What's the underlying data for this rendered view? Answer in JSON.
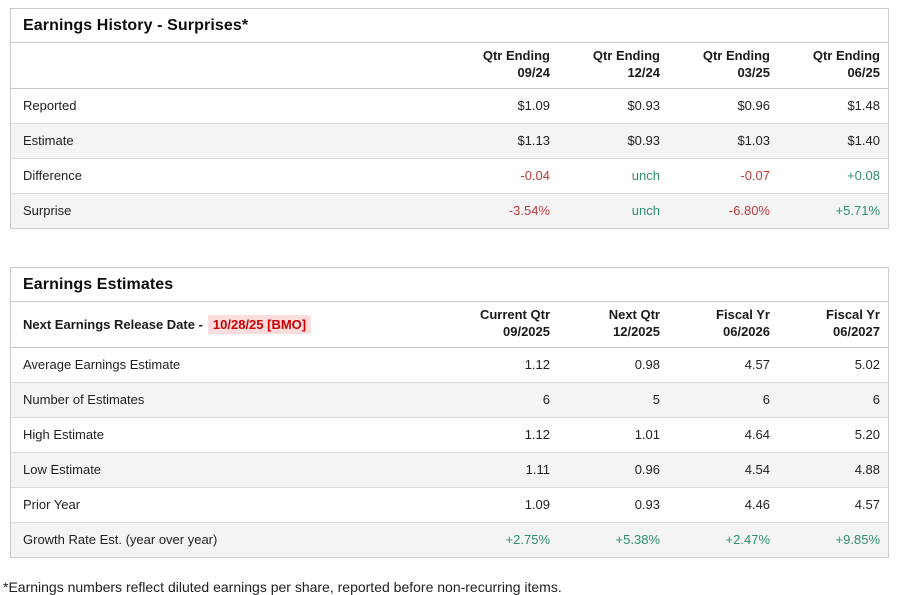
{
  "colors": {
    "negative": "#c23b3b",
    "positive": "#2e8f72",
    "date_red": "#cc0000",
    "date_highlight_bg": "#fbdddd",
    "row_alt_bg": "#f4f4f4",
    "border": "#cccccc"
  },
  "history": {
    "title": "Earnings History - Surprises*",
    "columns": [
      {
        "line1": "Qtr Ending",
        "line2": "09/24"
      },
      {
        "line1": "Qtr Ending",
        "line2": "12/24"
      },
      {
        "line1": "Qtr Ending",
        "line2": "03/25"
      },
      {
        "line1": "Qtr Ending",
        "line2": "06/25"
      }
    ],
    "rows": [
      {
        "label": "Reported",
        "values": [
          {
            "text": "$1.09",
            "tone": null
          },
          {
            "text": "$0.93",
            "tone": null
          },
          {
            "text": "$0.96",
            "tone": null
          },
          {
            "text": "$1.48",
            "tone": null
          }
        ]
      },
      {
        "label": "Estimate",
        "values": [
          {
            "text": "$1.13",
            "tone": null
          },
          {
            "text": "$0.93",
            "tone": null
          },
          {
            "text": "$1.03",
            "tone": null
          },
          {
            "text": "$1.40",
            "tone": null
          }
        ]
      },
      {
        "label": "Difference",
        "values": [
          {
            "text": "-0.04",
            "tone": "neg"
          },
          {
            "text": "unch",
            "tone": "pos"
          },
          {
            "text": "-0.07",
            "tone": "neg"
          },
          {
            "text": "+0.08",
            "tone": "pos"
          }
        ]
      },
      {
        "label": "Surprise",
        "values": [
          {
            "text": "-3.54%",
            "tone": "neg"
          },
          {
            "text": "unch",
            "tone": "pos"
          },
          {
            "text": "-6.80%",
            "tone": "neg"
          },
          {
            "text": "+5.71%",
            "tone": "pos"
          }
        ]
      }
    ]
  },
  "estimates": {
    "title": "Earnings Estimates",
    "release_label": "Next Earnings Release Date -",
    "release_date": "10/28/25 [BMO]",
    "columns": [
      {
        "line1": "Current Qtr",
        "line2": "09/2025"
      },
      {
        "line1": "Next Qtr",
        "line2": "12/2025"
      },
      {
        "line1": "Fiscal Yr",
        "line2": "06/2026"
      },
      {
        "line1": "Fiscal Yr",
        "line2": "06/2027"
      }
    ],
    "rows": [
      {
        "label": "Average Earnings Estimate",
        "values": [
          {
            "text": "1.12",
            "tone": null
          },
          {
            "text": "0.98",
            "tone": null
          },
          {
            "text": "4.57",
            "tone": null
          },
          {
            "text": "5.02",
            "tone": null
          }
        ]
      },
      {
        "label": "Number of Estimates",
        "values": [
          {
            "text": "6",
            "tone": null
          },
          {
            "text": "5",
            "tone": null
          },
          {
            "text": "6",
            "tone": null
          },
          {
            "text": "6",
            "tone": null
          }
        ]
      },
      {
        "label": "High Estimate",
        "values": [
          {
            "text": "1.12",
            "tone": null
          },
          {
            "text": "1.01",
            "tone": null
          },
          {
            "text": "4.64",
            "tone": null
          },
          {
            "text": "5.20",
            "tone": null
          }
        ]
      },
      {
        "label": "Low Estimate",
        "values": [
          {
            "text": "1.11",
            "tone": null
          },
          {
            "text": "0.96",
            "tone": null
          },
          {
            "text": "4.54",
            "tone": null
          },
          {
            "text": "4.88",
            "tone": null
          }
        ]
      },
      {
        "label": "Prior Year",
        "values": [
          {
            "text": "1.09",
            "tone": null
          },
          {
            "text": "0.93",
            "tone": null
          },
          {
            "text": "4.46",
            "tone": null
          },
          {
            "text": "4.57",
            "tone": null
          }
        ]
      },
      {
        "label": "Growth Rate Est. (year over year)",
        "values": [
          {
            "text": "+2.75%",
            "tone": "pos"
          },
          {
            "text": "+5.38%",
            "tone": "pos"
          },
          {
            "text": "+2.47%",
            "tone": "pos"
          },
          {
            "text": "+9.85%",
            "tone": "pos"
          }
        ]
      }
    ]
  },
  "footnote": "*Earnings numbers reflect diluted earnings per share, reported before non-recurring items."
}
